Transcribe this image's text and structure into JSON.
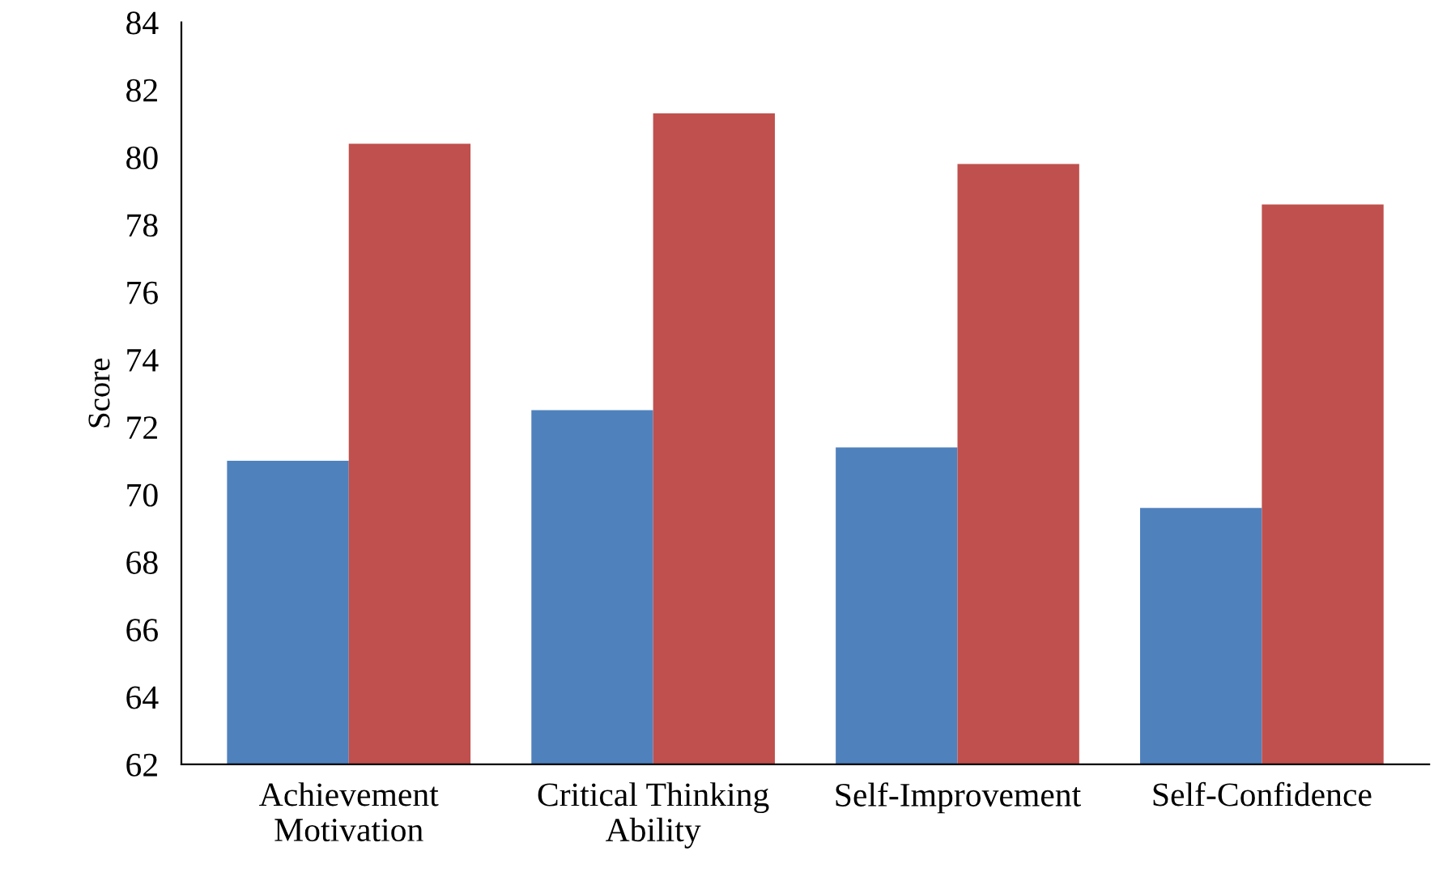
{
  "chart_data": {
    "type": "bar",
    "ylabel": "Score",
    "categories": [
      "Achievement\nMotivation",
      "Critical Thinking\nAbility",
      "Self-Improvement",
      "Self-Confidence"
    ],
    "series": [
      {
        "color": "#4f81bd",
        "values": [
          71.0,
          72.5,
          71.4,
          69.6
        ]
      },
      {
        "color": "#c0504d",
        "values": [
          80.4,
          81.3,
          79.8,
          78.6
        ]
      }
    ],
    "ylim": [
      62,
      84
    ],
    "yticks": [
      62,
      64,
      66,
      68,
      70,
      72,
      74,
      76,
      78,
      80,
      82,
      84
    ],
    "grid": false,
    "legend": false
  }
}
